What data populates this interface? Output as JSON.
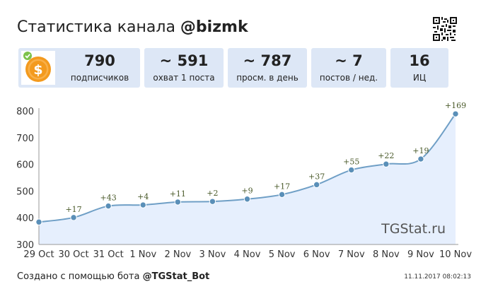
{
  "header": {
    "title_prefix": "Статистика канала",
    "channel": "@bizmk"
  },
  "stats": [
    {
      "value": "790",
      "label": "подписчиков"
    },
    {
      "value": "~ 591",
      "label": "охват 1 поста"
    },
    {
      "value": "~ 787",
      "label": "просм. в день"
    },
    {
      "value": "~ 7",
      "label": "постов / нед."
    },
    {
      "value": "16",
      "label": "ИЦ"
    }
  ],
  "footer": {
    "text": "Создано с помощью бота",
    "bot": "@TGStat_Bot",
    "timestamp": "11.11.2017 08:02:13"
  },
  "colors": {
    "card_bg": "#dde7f6",
    "line": "#6f9fc6",
    "area": "#e6effd",
    "point": "#5a8fb8",
    "delta_text": "#4a5a2a",
    "coin": "#f39a1e",
    "check": "#7cc24b"
  },
  "icons": {
    "channel_logo": "dollar-coin-icon",
    "verified": "check-badge-icon",
    "qr": "qr-code-icon"
  },
  "chart_data": {
    "type": "area",
    "categories": [
      "29 Oct",
      "30 Oct",
      "31 Oct",
      "1 Nov",
      "2 Nov",
      "3 Nov",
      "4 Nov",
      "5 Nov",
      "6 Nov",
      "7 Nov",
      "8 Nov",
      "9 Nov",
      "10 Nov"
    ],
    "values": [
      384,
      401,
      444,
      448,
      459,
      461,
      470,
      487,
      524,
      579,
      601,
      620,
      789
    ],
    "data_labels": [
      "",
      "+17",
      "+43",
      "+4",
      "+11",
      "+2",
      "+9",
      "+17",
      "+37",
      "+55",
      "+22",
      "+19",
      "+169"
    ],
    "yticks": [
      300,
      400,
      500,
      600,
      700,
      800
    ],
    "ylim": [
      300,
      800
    ],
    "grid": false,
    "watermark": "TGStat.ru"
  }
}
